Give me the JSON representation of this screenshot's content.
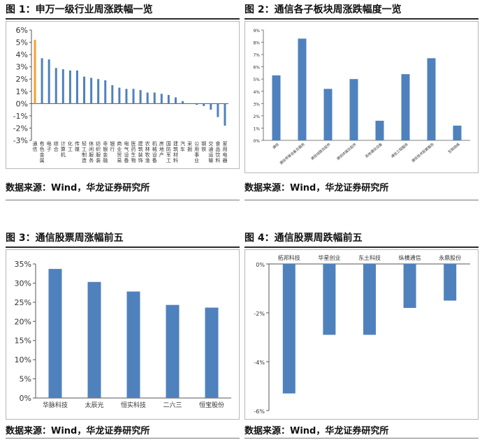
{
  "panels": [
    {
      "title": "图 1：申万一级行业周涨跌幅一览",
      "source": "数据来源：Wind，华龙证券研究所"
    },
    {
      "title": "图 2：通信各子板块周涨跌幅度一览",
      "source": "数据来源：Wind，华龙证券研究所"
    },
    {
      "title": "图 3：通信股票周涨幅前五",
      "source": "数据来源：Wind，华龙证券研究所"
    },
    {
      "title": "图 4：通信股票周跌幅前五",
      "source": "数据来源：Wind，华龙证券研究所"
    }
  ],
  "chart_data": [
    {
      "type": "bar",
      "categories": [
        "通信",
        "有色金属",
        "电子",
        "综合",
        "计算机",
        "化工",
        "传媒",
        "轻工制造",
        "休闲服务",
        "纺织服装",
        "非银金融",
        "银行",
        "商业贸易",
        "电气设备",
        "医药生物",
        "建筑装饰",
        "农林牧渔",
        "机械设备",
        "房地产",
        "国防军工",
        "建筑材料",
        "汽车",
        "采掘",
        "公用事业",
        "钢铁",
        "交通运输",
        "食品饮料",
        "家用电器"
      ],
      "values": [
        5.2,
        3.7,
        3.6,
        2.9,
        2.8,
        2.7,
        2.7,
        2.2,
        2.1,
        2.0,
        1.9,
        1.5,
        1.3,
        1.2,
        1.2,
        1.1,
        0.9,
        0.9,
        0.8,
        0.7,
        0.5,
        0.2,
        0.0,
        -0.1,
        -0.2,
        -0.5,
        -1.1,
        -1.8
      ],
      "highlight_color": "#f5a030",
      "bar_color": "#4f81bd",
      "yticks": [
        "-3%",
        "-2%",
        "-1%",
        "0%",
        "1%",
        "2%",
        "3%",
        "4%",
        "5%",
        "6%"
      ],
      "ylim": [
        -3,
        6
      ]
    },
    {
      "type": "bar",
      "categories": [
        "通信",
        "通信传输设备及服务",
        "通信线路及配件",
        "通信终端及配件",
        "其他通信设备",
        "通信工程服务",
        "通信技术配套服务",
        "互联网络"
      ],
      "values": [
        5.3,
        8.3,
        4.2,
        5.0,
        1.6,
        5.4,
        6.7,
        1.2
      ],
      "bar_color": "#4f81bd",
      "yticks": [
        "0%",
        "1%",
        "2%",
        "3%",
        "4%",
        "5%",
        "6%",
        "7%",
        "8%",
        "9%"
      ],
      "ylim": [
        0,
        9
      ]
    },
    {
      "type": "bar",
      "categories": [
        "华脉科技",
        "太辰光",
        "恒实科技",
        "二六三",
        "恒宝股份"
      ],
      "values": [
        33.7,
        30.3,
        27.8,
        24.3,
        23.6
      ],
      "bar_color": "#4f81bd",
      "yticks": [
        "0%",
        "5%",
        "10%",
        "15%",
        "20%",
        "25%",
        "30%",
        "35%"
      ],
      "ylim": [
        0,
        35
      ]
    },
    {
      "type": "bar",
      "categories": [
        "拓邦科技",
        "华星创业",
        "东土科技",
        "纵横通信",
        "永鼎股份"
      ],
      "values": [
        -5.3,
        -2.9,
        -2.9,
        -1.8,
        -1.5
      ],
      "bar_color": "#4f81bd",
      "yticks": [
        "0%",
        "-2%",
        "-4%",
        "-6%"
      ],
      "ylim": [
        -6,
        0
      ]
    }
  ]
}
